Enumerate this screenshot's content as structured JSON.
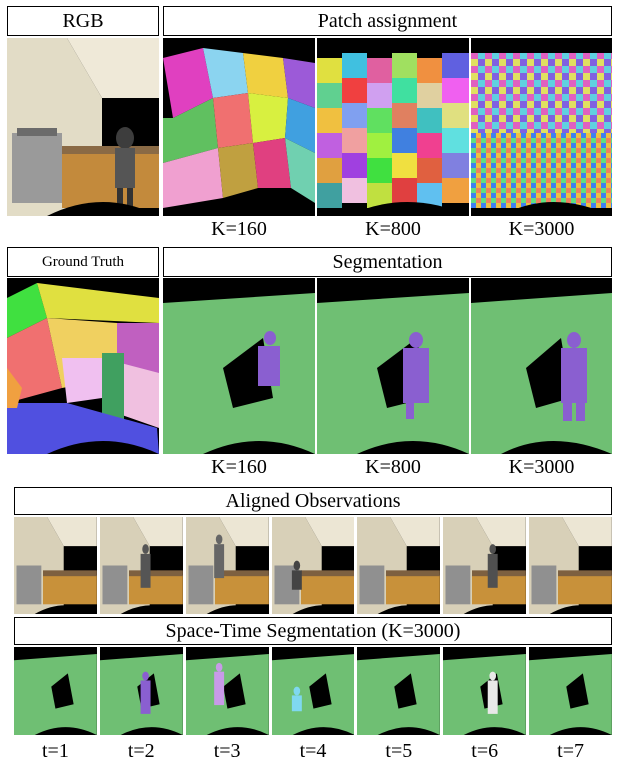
{
  "section1": {
    "rgb_title": "RGB",
    "patch_title": "Patch assignment",
    "k_labels": [
      "K=160",
      "K=800",
      "K=3000"
    ]
  },
  "section2": {
    "gt_title": "Ground Truth",
    "seg_title": "Segmentation",
    "k_labels": [
      "K=160",
      "K=800",
      "K=3000"
    ]
  },
  "section3": {
    "aligned_title": "Aligned Observations",
    "spacetime_title": "Space-Time Segmentation (K=3000)",
    "t_labels": [
      "t=1",
      "t=2",
      "t=3",
      "t=4",
      "t=5",
      "t=6",
      "t=7"
    ]
  },
  "colors": {
    "floor_green": "#6fbf73",
    "person_purple": "#8a5fd0",
    "wood": "#c8913a",
    "wall": "#d8d0b8"
  }
}
